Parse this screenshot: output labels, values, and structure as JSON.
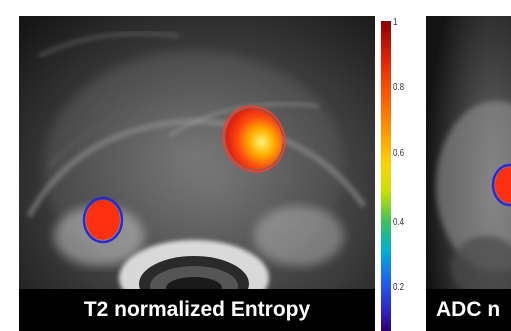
{
  "panels": {
    "left": {
      "caption": "T2 normalized Entropy"
    },
    "right": {
      "caption": "ADC n"
    }
  },
  "colorbar": {
    "ticks": [
      "1",
      "0.8",
      "0.6",
      "0.4",
      "0.2"
    ]
  },
  "colors": {
    "roi_outline_red": "#e02020",
    "roi_outline_blue": "#2a2ad0",
    "hot": "#ff3010",
    "peak": "#ffe640"
  }
}
